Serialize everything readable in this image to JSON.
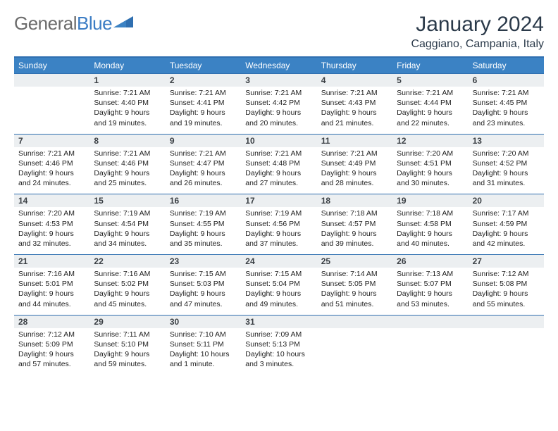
{
  "brand": {
    "text_gray": "General",
    "text_blue": "Blue"
  },
  "header": {
    "title": "January 2024",
    "location": "Caggiano, Campania, Italy"
  },
  "colors": {
    "header_bar": "#3b82c4",
    "rule": "#2f6fb0",
    "daynum_bg": "#eceff1",
    "text_dark": "#2b3a4a",
    "logo_gray": "#6b6b6b",
    "logo_blue": "#3b7cc4"
  },
  "day_names": [
    "Sunday",
    "Monday",
    "Tuesday",
    "Wednesday",
    "Thursday",
    "Friday",
    "Saturday"
  ],
  "weeks": [
    {
      "nums": [
        "",
        "1",
        "2",
        "3",
        "4",
        "5",
        "6"
      ],
      "cells": [
        null,
        {
          "sunrise": "Sunrise: 7:21 AM",
          "sunset": "Sunset: 4:40 PM",
          "daylight": "Daylight: 9 hours and 19 minutes."
        },
        {
          "sunrise": "Sunrise: 7:21 AM",
          "sunset": "Sunset: 4:41 PM",
          "daylight": "Daylight: 9 hours and 19 minutes."
        },
        {
          "sunrise": "Sunrise: 7:21 AM",
          "sunset": "Sunset: 4:42 PM",
          "daylight": "Daylight: 9 hours and 20 minutes."
        },
        {
          "sunrise": "Sunrise: 7:21 AM",
          "sunset": "Sunset: 4:43 PM",
          "daylight": "Daylight: 9 hours and 21 minutes."
        },
        {
          "sunrise": "Sunrise: 7:21 AM",
          "sunset": "Sunset: 4:44 PM",
          "daylight": "Daylight: 9 hours and 22 minutes."
        },
        {
          "sunrise": "Sunrise: 7:21 AM",
          "sunset": "Sunset: 4:45 PM",
          "daylight": "Daylight: 9 hours and 23 minutes."
        }
      ]
    },
    {
      "nums": [
        "7",
        "8",
        "9",
        "10",
        "11",
        "12",
        "13"
      ],
      "cells": [
        {
          "sunrise": "Sunrise: 7:21 AM",
          "sunset": "Sunset: 4:46 PM",
          "daylight": "Daylight: 9 hours and 24 minutes."
        },
        {
          "sunrise": "Sunrise: 7:21 AM",
          "sunset": "Sunset: 4:46 PM",
          "daylight": "Daylight: 9 hours and 25 minutes."
        },
        {
          "sunrise": "Sunrise: 7:21 AM",
          "sunset": "Sunset: 4:47 PM",
          "daylight": "Daylight: 9 hours and 26 minutes."
        },
        {
          "sunrise": "Sunrise: 7:21 AM",
          "sunset": "Sunset: 4:48 PM",
          "daylight": "Daylight: 9 hours and 27 minutes."
        },
        {
          "sunrise": "Sunrise: 7:21 AM",
          "sunset": "Sunset: 4:49 PM",
          "daylight": "Daylight: 9 hours and 28 minutes."
        },
        {
          "sunrise": "Sunrise: 7:20 AM",
          "sunset": "Sunset: 4:51 PM",
          "daylight": "Daylight: 9 hours and 30 minutes."
        },
        {
          "sunrise": "Sunrise: 7:20 AM",
          "sunset": "Sunset: 4:52 PM",
          "daylight": "Daylight: 9 hours and 31 minutes."
        }
      ]
    },
    {
      "nums": [
        "14",
        "15",
        "16",
        "17",
        "18",
        "19",
        "20"
      ],
      "cells": [
        {
          "sunrise": "Sunrise: 7:20 AM",
          "sunset": "Sunset: 4:53 PM",
          "daylight": "Daylight: 9 hours and 32 minutes."
        },
        {
          "sunrise": "Sunrise: 7:19 AM",
          "sunset": "Sunset: 4:54 PM",
          "daylight": "Daylight: 9 hours and 34 minutes."
        },
        {
          "sunrise": "Sunrise: 7:19 AM",
          "sunset": "Sunset: 4:55 PM",
          "daylight": "Daylight: 9 hours and 35 minutes."
        },
        {
          "sunrise": "Sunrise: 7:19 AM",
          "sunset": "Sunset: 4:56 PM",
          "daylight": "Daylight: 9 hours and 37 minutes."
        },
        {
          "sunrise": "Sunrise: 7:18 AM",
          "sunset": "Sunset: 4:57 PM",
          "daylight": "Daylight: 9 hours and 39 minutes."
        },
        {
          "sunrise": "Sunrise: 7:18 AM",
          "sunset": "Sunset: 4:58 PM",
          "daylight": "Daylight: 9 hours and 40 minutes."
        },
        {
          "sunrise": "Sunrise: 7:17 AM",
          "sunset": "Sunset: 4:59 PM",
          "daylight": "Daylight: 9 hours and 42 minutes."
        }
      ]
    },
    {
      "nums": [
        "21",
        "22",
        "23",
        "24",
        "25",
        "26",
        "27"
      ],
      "cells": [
        {
          "sunrise": "Sunrise: 7:16 AM",
          "sunset": "Sunset: 5:01 PM",
          "daylight": "Daylight: 9 hours and 44 minutes."
        },
        {
          "sunrise": "Sunrise: 7:16 AM",
          "sunset": "Sunset: 5:02 PM",
          "daylight": "Daylight: 9 hours and 45 minutes."
        },
        {
          "sunrise": "Sunrise: 7:15 AM",
          "sunset": "Sunset: 5:03 PM",
          "daylight": "Daylight: 9 hours and 47 minutes."
        },
        {
          "sunrise": "Sunrise: 7:15 AM",
          "sunset": "Sunset: 5:04 PM",
          "daylight": "Daylight: 9 hours and 49 minutes."
        },
        {
          "sunrise": "Sunrise: 7:14 AM",
          "sunset": "Sunset: 5:05 PM",
          "daylight": "Daylight: 9 hours and 51 minutes."
        },
        {
          "sunrise": "Sunrise: 7:13 AM",
          "sunset": "Sunset: 5:07 PM",
          "daylight": "Daylight: 9 hours and 53 minutes."
        },
        {
          "sunrise": "Sunrise: 7:12 AM",
          "sunset": "Sunset: 5:08 PM",
          "daylight": "Daylight: 9 hours and 55 minutes."
        }
      ]
    },
    {
      "nums": [
        "28",
        "29",
        "30",
        "31",
        "",
        "",
        ""
      ],
      "cells": [
        {
          "sunrise": "Sunrise: 7:12 AM",
          "sunset": "Sunset: 5:09 PM",
          "daylight": "Daylight: 9 hours and 57 minutes."
        },
        {
          "sunrise": "Sunrise: 7:11 AM",
          "sunset": "Sunset: 5:10 PM",
          "daylight": "Daylight: 9 hours and 59 minutes."
        },
        {
          "sunrise": "Sunrise: 7:10 AM",
          "sunset": "Sunset: 5:11 PM",
          "daylight": "Daylight: 10 hours and 1 minute."
        },
        {
          "sunrise": "Sunrise: 7:09 AM",
          "sunset": "Sunset: 5:13 PM",
          "daylight": "Daylight: 10 hours and 3 minutes."
        },
        null,
        null,
        null
      ]
    }
  ]
}
